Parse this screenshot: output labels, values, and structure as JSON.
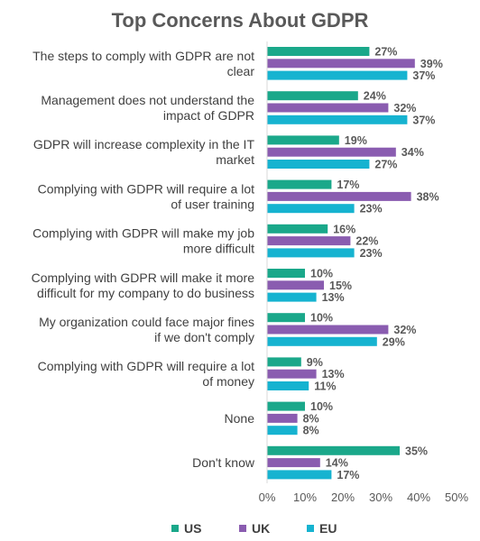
{
  "chart_data": {
    "type": "bar",
    "orientation": "horizontal",
    "title": "Top Concerns About GDPR",
    "categories": [
      [
        "The steps to comply with GDPR are not",
        "clear"
      ],
      [
        "Management does not understand the",
        "impact of GDPR"
      ],
      [
        "GDPR will increase complexity in the IT",
        "market"
      ],
      [
        "Complying with GDPR will require a lot",
        "of user training"
      ],
      [
        "Complying with GDPR will make my job",
        "more difficult"
      ],
      [
        "Complying with GDPR will make it more",
        "difficult for my company to do business"
      ],
      [
        "My organization could face major fines",
        "if we don't comply"
      ],
      [
        "Complying with GDPR will require a lot",
        "of money"
      ],
      [
        "None"
      ],
      [
        "Don't know"
      ]
    ],
    "series": [
      {
        "name": "US",
        "color": "#1aa88a",
        "values": [
          27,
          24,
          19,
          17,
          16,
          10,
          10,
          9,
          10,
          35
        ]
      },
      {
        "name": "UK",
        "color": "#8a5cb0",
        "values": [
          39,
          32,
          34,
          38,
          22,
          15,
          32,
          13,
          8,
          14
        ]
      },
      {
        "name": "EU",
        "color": "#16b3d0",
        "values": [
          37,
          37,
          27,
          23,
          23,
          13,
          29,
          11,
          8,
          17
        ]
      }
    ],
    "value_suffix": "%",
    "xlim": [
      0,
      50
    ],
    "xticks": [
      "0%",
      "10%",
      "20%",
      "30%",
      "40%",
      "50%"
    ],
    "legend_position": "bottom",
    "grid": false
  }
}
